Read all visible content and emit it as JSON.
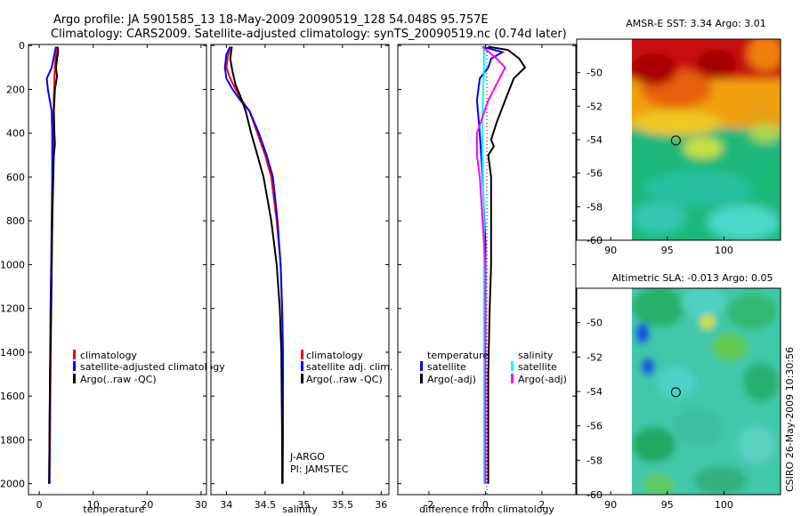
{
  "header": {
    "title_line1": "Argo profile: JA 5901585_13 18-May-2009 20090519_128 54.048S 95.757E",
    "title_line2": "Climatology: CARS2009. Satellite-adjusted climatology: synTS_20090519.nc (0.74d later)"
  },
  "footer": {
    "stamp": "CSIRO 26-May-2009 10:30:56"
  },
  "colors": {
    "red": "#ff0000",
    "blue": "#0000ff",
    "black": "#000000",
    "cyan": "#00ffff",
    "magenta": "#ff00ff"
  },
  "chart_data": [
    {
      "type": "line",
      "name": "temperature-profile",
      "xlabel": "temperature",
      "ylabel": "",
      "xlim": [
        -2,
        31
      ],
      "ylim": [
        2050,
        -5
      ],
      "xticks": [
        "0",
        "10",
        "20",
        "30"
      ],
      "yticks": [
        "0",
        "200",
        "400",
        "600",
        "800",
        "1000",
        "1200",
        "1400",
        "1600",
        "1800",
        "2000"
      ],
      "legend": {
        "placement": "right-middle",
        "entries": [
          "climatology",
          "satellite-adjusted climatology",
          "Argo(..raw -QC)"
        ]
      },
      "series": [
        {
          "name": "climatology",
          "color": "red",
          "points": [
            [
              3.4,
              5
            ],
            [
              3.2,
              30
            ],
            [
              3.0,
              60
            ],
            [
              2.9,
              100
            ],
            [
              2.8,
              150
            ],
            [
              2.7,
              250
            ],
            [
              2.6,
              400
            ],
            [
              2.5,
              600
            ],
            [
              2.4,
              800
            ],
            [
              2.3,
              1000
            ],
            [
              2.2,
              1200
            ],
            [
              2.1,
              1500
            ],
            [
              2.0,
              1800
            ],
            [
              1.9,
              2000
            ]
          ]
        },
        {
          "name": "satellite-adjusted climatology",
          "color": "blue",
          "points": [
            [
              3.1,
              5
            ],
            [
              2.8,
              40
            ],
            [
              2.3,
              100
            ],
            [
              1.4,
              150
            ],
            [
              1.6,
              200
            ],
            [
              2.3,
              300
            ],
            [
              2.4,
              400
            ],
            [
              2.4,
              600
            ],
            [
              2.3,
              800
            ],
            [
              2.2,
              1000
            ],
            [
              2.1,
              1200
            ],
            [
              2.0,
              1500
            ],
            [
              1.9,
              1800
            ],
            [
              1.8,
              2000
            ]
          ]
        },
        {
          "name": "Argo(..raw -QC)",
          "color": "black",
          "points": [
            [
              3.4,
              5
            ],
            [
              3.5,
              30
            ],
            [
              3.3,
              60
            ],
            [
              3.1,
              100
            ],
            [
              3.3,
              140
            ],
            [
              2.9,
              200
            ],
            [
              2.7,
              300
            ],
            [
              2.8,
              400
            ],
            [
              2.9,
              450
            ],
            [
              2.7,
              500
            ],
            [
              2.6,
              600
            ],
            [
              2.4,
              800
            ],
            [
              2.3,
              1000
            ],
            [
              2.2,
              1200
            ],
            [
              2.0,
              1500
            ],
            [
              1.9,
              1800
            ],
            [
              1.9,
              2000
            ]
          ]
        }
      ]
    },
    {
      "type": "line",
      "name": "salinity-profile",
      "xlabel": "salinity",
      "xlim": [
        33.8,
        36.1
      ],
      "ylim": [
        2050,
        -5
      ],
      "xticks": [
        "34",
        "34.5",
        "35",
        "35.5",
        "36"
      ],
      "legend": {
        "placement": "right-middle",
        "entries": [
          "climatology",
          "satellite adj. clim.",
          "Argo(..raw -QC)"
        ]
      },
      "annotation": [
        "J-ARGO",
        "PI: JAMSTEC"
      ],
      "series": [
        {
          "name": "climatology",
          "color": "red",
          "points": [
            [
              34.05,
              5
            ],
            [
              34.02,
              50
            ],
            [
              34.0,
              100
            ],
            [
              34.05,
              150
            ],
            [
              34.12,
              200
            ],
            [
              34.2,
              250
            ],
            [
              34.3,
              300
            ],
            [
              34.4,
              400
            ],
            [
              34.5,
              500
            ],
            [
              34.58,
              600
            ],
            [
              34.65,
              800
            ],
            [
              34.7,
              1000
            ],
            [
              34.72,
              1200
            ],
            [
              34.73,
              1400
            ],
            [
              34.73,
              1800
            ],
            [
              34.73,
              2000
            ]
          ]
        },
        {
          "name": "satellite adj. clim.",
          "color": "blue",
          "points": [
            [
              34.05,
              5
            ],
            [
              34.0,
              40
            ],
            [
              33.98,
              100
            ],
            [
              34.0,
              150
            ],
            [
              34.08,
              200
            ],
            [
              34.18,
              250
            ],
            [
              34.3,
              300
            ],
            [
              34.42,
              400
            ],
            [
              34.52,
              500
            ],
            [
              34.6,
              600
            ],
            [
              34.66,
              800
            ],
            [
              34.7,
              1000
            ],
            [
              34.72,
              1200
            ],
            [
              34.73,
              1400
            ],
            [
              34.73,
              1800
            ],
            [
              34.72,
              2000
            ]
          ]
        },
        {
          "name": "Argo(..raw -QC)",
          "color": "black",
          "points": [
            [
              34.07,
              5
            ],
            [
              34.05,
              60
            ],
            [
              34.08,
              120
            ],
            [
              34.12,
              180
            ],
            [
              34.18,
              230
            ],
            [
              34.25,
              300
            ],
            [
              34.32,
              400
            ],
            [
              34.4,
              500
            ],
            [
              34.48,
              600
            ],
            [
              34.58,
              800
            ],
            [
              34.65,
              1000
            ],
            [
              34.69,
              1200
            ],
            [
              34.71,
              1400
            ],
            [
              34.72,
              1800
            ],
            [
              34.72,
              2000
            ]
          ]
        }
      ]
    },
    {
      "type": "line",
      "name": "difference-profile",
      "xlabel": "difference from climatology",
      "xlim": [
        -3.1,
        3.2
      ],
      "ylim": [
        2050,
        -5
      ],
      "xticks": [
        "-2",
        "0",
        "2"
      ],
      "legend": {
        "placement": "right-middle",
        "columns": [
          {
            "header": "temperature",
            "entries": [
              "satellite",
              "Argo(-adj)"
            ]
          },
          {
            "header": "salinity",
            "entries": [
              "satellite",
              "Argo(-adj)"
            ]
          }
        ]
      },
      "series": [
        {
          "name": "temperature satellite",
          "color": "blue",
          "points": [
            [
              -0.1,
              5
            ],
            [
              0.6,
              30
            ],
            [
              0.2,
              60
            ],
            [
              0.1,
              100
            ],
            [
              -0.2,
              150
            ],
            [
              -0.3,
              250
            ],
            [
              -0.2,
              400
            ],
            [
              -0.1,
              600
            ],
            [
              0,
              900
            ],
            [
              0,
              1200
            ],
            [
              0,
              1500
            ],
            [
              0,
              2000
            ]
          ]
        },
        {
          "name": "temperature Argo(-adj)",
          "color": "black",
          "points": [
            [
              0.1,
              5
            ],
            [
              0.8,
              20
            ],
            [
              1.2,
              60
            ],
            [
              1.4,
              100
            ],
            [
              1.0,
              150
            ],
            [
              0.7,
              250
            ],
            [
              0.4,
              350
            ],
            [
              0.2,
              430
            ],
            [
              0.3,
              460
            ],
            [
              0.1,
              500
            ],
            [
              0.2,
              600
            ],
            [
              0.2,
              800
            ],
            [
              0.2,
              1000
            ],
            [
              0.15,
              1200
            ],
            [
              0.1,
              1500
            ],
            [
              0.1,
              1800
            ],
            [
              0.1,
              2000
            ]
          ]
        },
        {
          "name": "salinity satellite",
          "color": "cyan",
          "points": [
            [
              -0.05,
              5
            ],
            [
              -0.05,
              100
            ],
            [
              -0.1,
              300
            ],
            [
              -0.1,
              500
            ],
            [
              -0.05,
              800
            ],
            [
              -0.05,
              1200
            ],
            [
              -0.05,
              1600
            ],
            [
              -0.05,
              2000
            ]
          ]
        },
        {
          "name": "salinity Argo(-adj)",
          "color": "magenta",
          "points": [
            [
              -0.1,
              5
            ],
            [
              0.4,
              60
            ],
            [
              0.7,
              100
            ],
            [
              0.5,
              150
            ],
            [
              0.1,
              250
            ],
            [
              -0.3,
              400
            ],
            [
              -0.3,
              500
            ],
            [
              -0.2,
              600
            ],
            [
              -0.1,
              800
            ],
            [
              0,
              1000
            ],
            [
              0,
              1500
            ],
            [
              0,
              2000
            ]
          ]
        }
      ]
    },
    {
      "type": "heatmap",
      "name": "amsr-sst-map",
      "title": "AMSR-E SST: 3.34 Argo: 3.01",
      "xlim": [
        87,
        105
      ],
      "ylim": [
        -60,
        -48
      ],
      "xticks": [
        "90",
        "95",
        "100"
      ],
      "yticks": [
        "-50",
        "-52",
        "-54",
        "-56",
        "-58",
        "-60"
      ],
      "marker": {
        "lon": 95.757,
        "lat": -54.048
      }
    },
    {
      "type": "heatmap",
      "name": "altimetric-sla-map",
      "title": "Altimetric SLA: -0.013 Argo: 0.05",
      "xlim": [
        87,
        105
      ],
      "ylim": [
        -60,
        -48
      ],
      "xticks": [
        "90",
        "95",
        "100"
      ],
      "yticks": [
        "-50",
        "-52",
        "-54",
        "-56",
        "-58",
        "-60"
      ],
      "marker": {
        "lon": 95.757,
        "lat": -54.048
      }
    }
  ]
}
